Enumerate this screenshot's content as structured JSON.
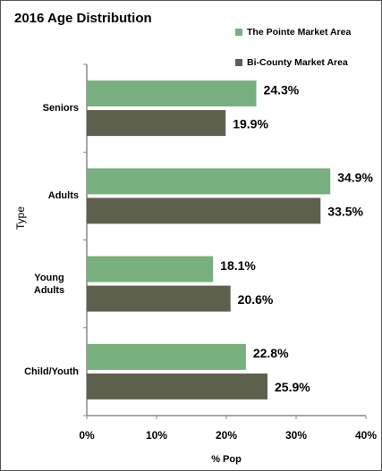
{
  "chart_data": {
    "type": "bar",
    "orientation": "horizontal",
    "title": "2016 Age Distribution",
    "categories": [
      "Seniors",
      "Adults",
      "Young Adults",
      "Child/Youth"
    ],
    "series": [
      {
        "name": "The Pointe Market Area",
        "color": "#77b07e",
        "values": [
          24.3,
          34.9,
          18.1,
          22.8
        ],
        "value_labels": [
          "24.3%",
          "34.9%",
          "18.1%",
          "22.8%"
        ]
      },
      {
        "name": "Bi-County Market Area",
        "color": "#5e604e",
        "values": [
          19.9,
          33.5,
          20.6,
          25.9
        ],
        "value_labels": [
          "19.9%",
          "33.5%",
          "20.6%",
          "25.9%"
        ]
      }
    ],
    "xlim": [
      0,
      40
    ],
    "xticks": [
      {
        "value": 0,
        "label": "0%"
      },
      {
        "value": 10,
        "label": "10%"
      },
      {
        "value": 20,
        "label": "20%"
      },
      {
        "value": 30,
        "label": "30%"
      },
      {
        "value": 40,
        "label": "40%"
      }
    ],
    "xlabel": "% Pop",
    "ylabel": "Type",
    "grid": false,
    "legend": "top-right"
  }
}
